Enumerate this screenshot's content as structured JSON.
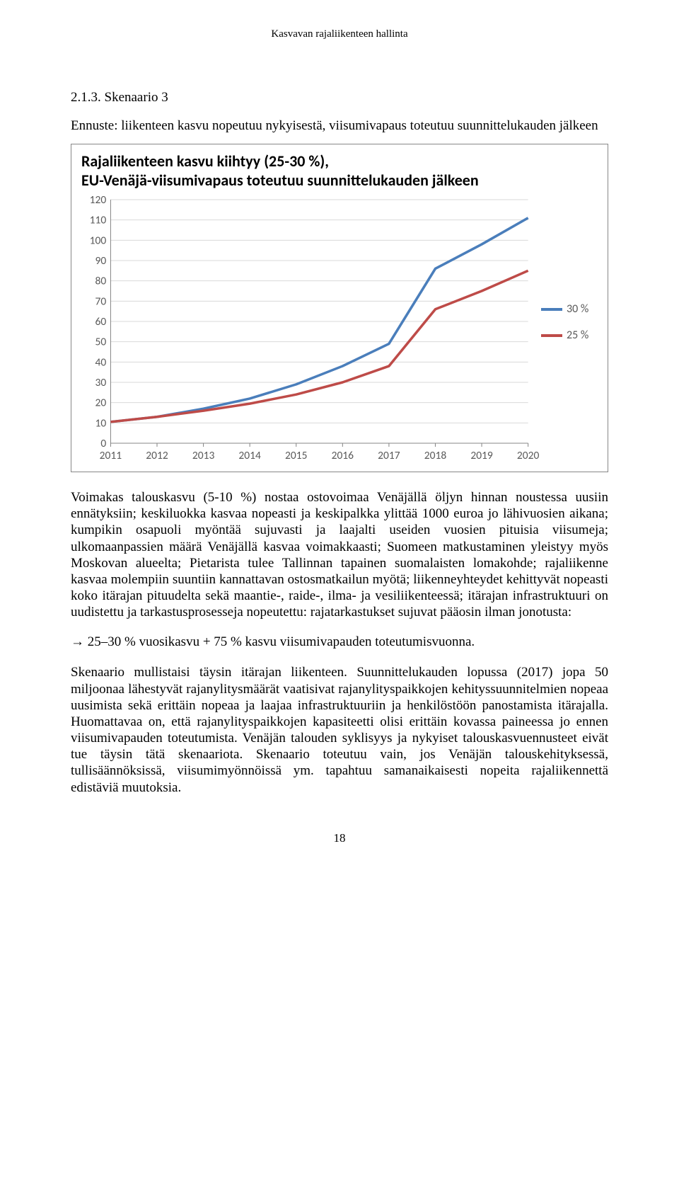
{
  "running_header": "Kasvavan rajaliikenteen hallinta",
  "section_number": "2.1.3. Skenaario 3",
  "forecast_line": "Ennuste: liikenteen kasvu nopeutuu nykyisestä, viisumivapaus toteutuu suunnittelukauden jälkeen",
  "chart": {
    "title_line1": "Rajaliikenteen kasvu kiihtyy (25-30 %),",
    "title_line2": "EU-Venäjä-viisumivapaus toteutuu suunnittelukauden jälkeen",
    "x_categories": [
      "2011",
      "2012",
      "2013",
      "2014",
      "2015",
      "2016",
      "2017",
      "2018",
      "2019",
      "2020"
    ],
    "y_ticks": [
      0,
      10,
      20,
      30,
      40,
      50,
      60,
      70,
      80,
      90,
      100,
      110,
      120
    ],
    "ylim": [
      0,
      120
    ],
    "series": [
      {
        "label": "30 %",
        "color": "#4a7ebb",
        "values": [
          10.5,
          13,
          17,
          22,
          29,
          38,
          49,
          86,
          98,
          111
        ]
      },
      {
        "label": "25 %",
        "color": "#be4b48",
        "values": [
          10.5,
          13,
          16,
          19.5,
          24,
          30,
          38,
          66,
          75,
          85
        ]
      }
    ],
    "grid_color": "#d9d9d9",
    "axis_color": "#878787",
    "tick_font_color": "#595959",
    "line_width": 3.5,
    "background": "#ffffff"
  },
  "legend_items": [
    {
      "color": "#4a7ebb",
      "label": "30 %"
    },
    {
      "color": "#be4b48",
      "label": "25 %"
    }
  ],
  "body_para_1": "Voimakas talouskasvu (5-10 %) nostaa ostovoimaa Venäjällä öljyn hinnan noustessa uusiin ennätyksiin; keskiluokka kasvaa nopeasti ja keskipalkka ylittää 1000 euroa jo lähivuosien aikana; kumpikin osapuoli myöntää sujuvasti ja laajalti useiden vuosien pituisia viisumeja; ulkomaanpassien määrä Venäjällä kasvaa voimakkaasti; Suomeen matkustaminen yleistyy myös Moskovan alueelta; Pietarista tulee Tallinnan tapainen suomalaisten lomakohde; rajaliikenne kasvaa molempiin suuntiin kannattavan ostosmatkailun myötä; liikenneyhteydet kehittyvät nopeasti koko itärajan pituudelta sekä maantie-, raide-, ilma- ja vesiliikenteessä; itärajan infrastruktuuri on uudistettu ja tarkastusprosesseja nopeutettu: rajatarkastukset sujuvat pääosin ilman jonotusta:",
  "arrow_line": "→ 25–30 % vuosikasvu + 75 % kasvu viisumivapauden toteutumisvuonna.",
  "body_para_2": "Skenaario mullistaisi täysin itärajan liikenteen. Suunnittelukauden lopussa (2017) jopa 50 miljoonaa lähestyvät rajanylitysmäärät vaatisivat rajanylityspaikkojen kehityssuunnitelmien nopeaa uusimista sekä erittäin nopeaa ja laajaa infrastruktuuriin ja henkilöstöön panostamista itärajalla. Huomattavaa on, että rajanylityspaikkojen kapasiteetti olisi erittäin kovassa paineessa jo ennen viisumivapauden toteutumista. Venäjän talouden syklisyys ja nykyiset talouskasvuennusteet eivät tue täysin tätä skenaariota. Skenaario toteutuu vain, jos Venäjän talouskehityksessä, tullisäännöksissä, viisumimyönnöissä ym. tapahtuu samanaikaisesti nopeita rajaliikennettä edistäviä muutoksia.",
  "page_number": "18"
}
